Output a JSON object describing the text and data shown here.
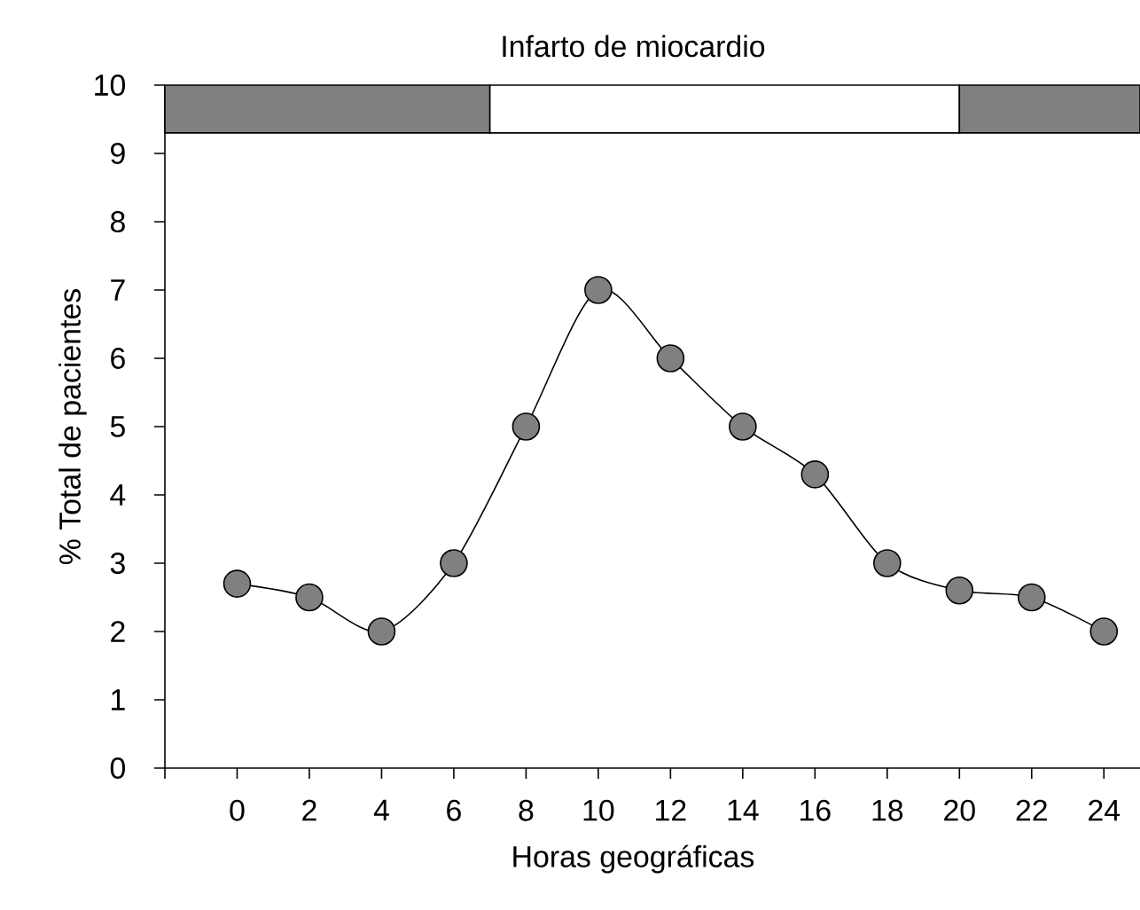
{
  "chart_data": {
    "type": "line",
    "title": "Infarto de miocardio",
    "xlabel": "Horas geográficas",
    "ylabel": "% Total de pacientes",
    "x": [
      0,
      2,
      4,
      6,
      8,
      10,
      12,
      14,
      16,
      18,
      20,
      22,
      24
    ],
    "series": [
      {
        "color": "#808080",
        "values": [
          2.7,
          2.5,
          2.0,
          3.0,
          5.0,
          7.0,
          6.0,
          5.0,
          4.3,
          3.0,
          2.6,
          2.5,
          2.0
        ]
      }
    ],
    "xlim": [
      -2,
      25
    ],
    "ylim": [
      0,
      10
    ],
    "xticks": [
      {
        "value": -2,
        "label": null
      },
      0,
      2,
      4,
      6,
      8,
      10,
      12,
      14,
      16,
      18,
      20,
      22,
      24
    ],
    "yticks": [
      0,
      1,
      2,
      3,
      4,
      5,
      6,
      7,
      8,
      9,
      10
    ],
    "bands": [
      {
        "axis": "x",
        "from": -2,
        "to": 7,
        "color": "#808080"
      },
      {
        "axis": "x",
        "from": 7,
        "to": 20,
        "color": "#ffffff"
      },
      {
        "axis": "x",
        "from": 20,
        "to": 25,
        "color": "#808080"
      }
    ],
    "marker": "circle",
    "line_style": "solid"
  }
}
